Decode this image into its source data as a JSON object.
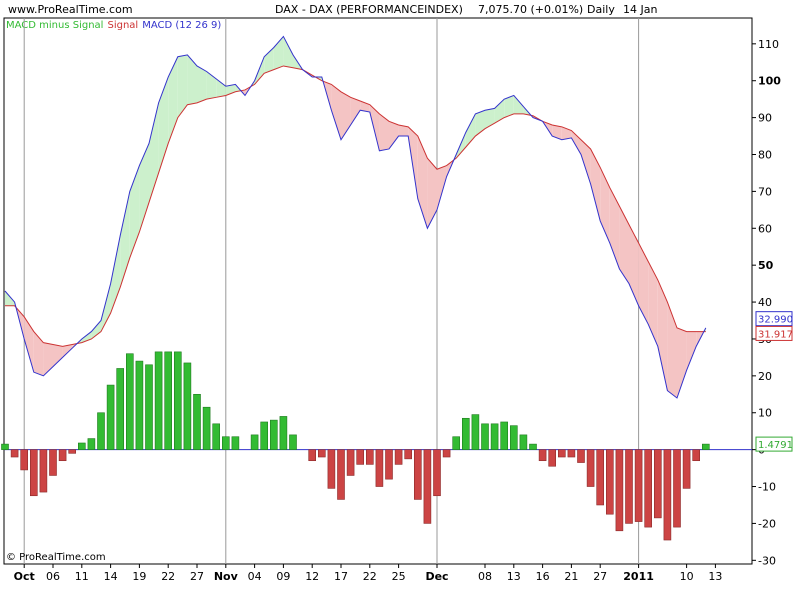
{
  "header": {
    "site": "www.ProRealTime.com",
    "instrument": "DAX - DAX (PERFORMANCEINDEX)",
    "quote": "7,075.70 (+0.01%)",
    "period": "Daily",
    "date": "14 Jan"
  },
  "legend": {
    "histogram": "MACD minus Signal",
    "signal": "Signal",
    "macd": "MACD (12 26 9)"
  },
  "credit": "© ProRealTime.com",
  "tags": {
    "macd_value": "32.990",
    "signal_value": "31.917",
    "histogram_value": "1.4791"
  },
  "colors": {
    "macd": "#3333cc",
    "signal": "#cc3333",
    "hist_pos": "#33bb33",
    "hist_neg": "#cc4444",
    "fill_pos": "#ccf0cc",
    "fill_neg": "#f4c4c4",
    "month_line": "#999999"
  },
  "chart_data": {
    "type": "bar",
    "ylim": [
      -31,
      117
    ],
    "y_ticks": [
      -30,
      -20,
      -10,
      0,
      10,
      20,
      30,
      40,
      50,
      60,
      70,
      80,
      90,
      100,
      110
    ],
    "x_ticks": [
      {
        "label": "Oct",
        "i": 2,
        "bold": true,
        "month_line": true
      },
      {
        "label": "06",
        "i": 5
      },
      {
        "label": "11",
        "i": 8
      },
      {
        "label": "14",
        "i": 11
      },
      {
        "label": "19",
        "i": 14
      },
      {
        "label": "22",
        "i": 17
      },
      {
        "label": "27",
        "i": 20
      },
      {
        "label": "Nov",
        "i": 23,
        "bold": true,
        "month_line": true
      },
      {
        "label": "04",
        "i": 26
      },
      {
        "label": "09",
        "i": 29
      },
      {
        "label": "12",
        "i": 32
      },
      {
        "label": "17",
        "i": 35
      },
      {
        "label": "22",
        "i": 38
      },
      {
        "label": "25",
        "i": 41
      },
      {
        "label": "Dec",
        "i": 45,
        "bold": true,
        "month_line": true
      },
      {
        "label": "08",
        "i": 50
      },
      {
        "label": "13",
        "i": 53
      },
      {
        "label": "16",
        "i": 56
      },
      {
        "label": "21",
        "i": 59
      },
      {
        "label": "27",
        "i": 62
      },
      {
        "label": "2011",
        "i": 66,
        "bold": true,
        "month_line": true
      },
      {
        "label": "10",
        "i": 71
      },
      {
        "label": "13",
        "i": 74
      }
    ],
    "series": [
      {
        "name": "MACD (12 26 9)",
        "values": [
          43,
          40,
          30,
          21,
          20,
          22.5,
          25,
          27.5,
          30,
          32,
          35,
          45,
          58,
          70,
          77,
          83,
          94,
          101,
          106.5,
          107,
          104,
          102.5,
          100.5,
          98.5,
          99,
          96,
          100,
          106.5,
          109,
          112,
          107,
          103,
          101,
          101,
          92,
          84,
          88,
          92,
          91.5,
          81,
          81.5,
          85,
          85,
          68,
          60,
          65,
          74,
          80,
          86,
          91,
          92,
          92.5,
          95,
          96,
          93,
          90,
          89,
          85,
          84,
          84.5,
          80,
          72,
          62,
          56,
          49,
          45,
          39,
          34,
          28,
          16,
          14,
          21.5,
          28,
          33
        ]
      },
      {
        "name": "Signal",
        "values": [
          39,
          39,
          36,
          32,
          29,
          28.5,
          28,
          28.5,
          29,
          30,
          32,
          37,
          44,
          52,
          59,
          67,
          75,
          83,
          90,
          93.5,
          94,
          95,
          95.5,
          96,
          97,
          97.5,
          99,
          102,
          103,
          104,
          103.5,
          103,
          101.5,
          100,
          99,
          97,
          95.5,
          94.5,
          93.5,
          91,
          89,
          88,
          87.5,
          85,
          79,
          76,
          77,
          79,
          82,
          85,
          87,
          88.5,
          90,
          91,
          91,
          90.5,
          89,
          88,
          87.5,
          86.5,
          84,
          81.5,
          76.5,
          71,
          66,
          61,
          56,
          51,
          46,
          40,
          33,
          32,
          32,
          32
        ]
      },
      {
        "name": "MACD minus Signal",
        "values": [
          1.5,
          -2,
          -5.5,
          -12.5,
          -11.5,
          -7,
          -3,
          -1,
          1.8,
          3,
          10,
          17.5,
          22,
          26,
          24,
          23,
          26.5,
          26.5,
          26.5,
          23.5,
          15,
          11.5,
          7,
          3.5,
          3.5,
          0,
          4,
          7.5,
          8,
          9,
          4,
          0,
          -3,
          -2,
          -10.5,
          -13.5,
          -7,
          -4,
          -4,
          -10,
          -8,
          -4,
          -2.5,
          -13.5,
          -20,
          -12.5,
          -2,
          3.5,
          8.5,
          9.5,
          7,
          7,
          7.5,
          6.5,
          4,
          1.5,
          -3,
          -4.5,
          -2,
          -2,
          -3.5,
          -10,
          -15,
          -17.5,
          -22,
          -20,
          -19.5,
          -21,
          -18.5,
          -24.5,
          -21,
          -10.5,
          -3,
          1.5
        ]
      }
    ]
  }
}
